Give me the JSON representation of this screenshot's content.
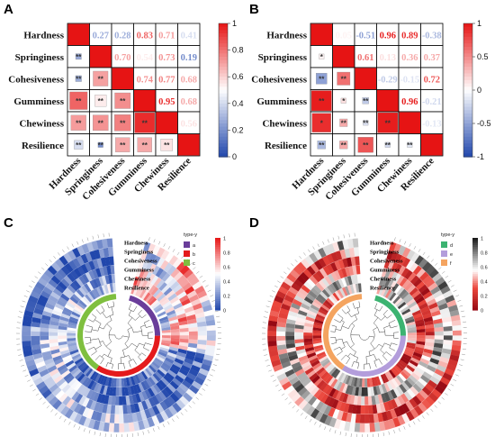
{
  "panels": {
    "a": {
      "letter": "A"
    },
    "b": {
      "letter": "B"
    },
    "c": {
      "letter": "C"
    },
    "d": {
      "letter": "D"
    }
  },
  "chart_data": [
    {
      "type": "heatmap",
      "panel": "A",
      "variables": [
        "Hardness",
        "Springiness",
        "Cohesiveness",
        "Gumminess",
        "Chewiness",
        "Resilience"
      ],
      "upper_values": [
        [
          null,
          0.27,
          0.28,
          0.83,
          0.71,
          0.41
        ],
        [
          null,
          null,
          0.7,
          0.54,
          0.73,
          0.19
        ],
        [
          null,
          null,
          null,
          0.74,
          0.77,
          0.68
        ],
        [
          null,
          null,
          null,
          null,
          0.95,
          0.68
        ],
        [
          null,
          null,
          null,
          null,
          null,
          0.56
        ],
        [
          null,
          null,
          null,
          null,
          null,
          null
        ]
      ],
      "lower_stars": [
        [
          null,
          null,
          null,
          null,
          null,
          null
        ],
        [
          "**",
          null,
          null,
          null,
          null,
          null
        ],
        [
          "**",
          "**",
          null,
          null,
          null,
          null
        ],
        [
          "**",
          "**",
          "**",
          null,
          null,
          null
        ],
        [
          "**",
          "**",
          "**",
          "**",
          null,
          null
        ],
        [
          "**",
          "**",
          "**",
          "**",
          "**",
          null
        ]
      ],
      "colorbar": {
        "min": 0,
        "max": 1,
        "ticks": [
          "0",
          "0.2",
          "0.4",
          "0.6",
          "0.8",
          "1"
        ]
      }
    },
    {
      "type": "heatmap",
      "panel": "B",
      "variables": [
        "Hardness",
        "Springiness",
        "Cohesiveness",
        "Gumminess",
        "Chewiness",
        "Resilience"
      ],
      "upper_values": [
        [
          null,
          0.05,
          -0.51,
          0.96,
          0.89,
          -0.38
        ],
        [
          null,
          null,
          0.61,
          0.13,
          0.36,
          0.37
        ],
        [
          null,
          null,
          null,
          -0.29,
          -0.15,
          0.72
        ],
        [
          null,
          null,
          null,
          null,
          0.96,
          -0.21
        ],
        [
          null,
          null,
          null,
          null,
          null,
          -0.13
        ],
        [
          null,
          null,
          null,
          null,
          null,
          null
        ]
      ],
      "lower_stars": [
        [
          null,
          null,
          null,
          null,
          null,
          null
        ],
        [
          "*",
          null,
          null,
          null,
          null,
          null
        ],
        [
          "**",
          "**",
          null,
          null,
          null,
          null
        ],
        [
          "**",
          "*",
          "**",
          null,
          null,
          null
        ],
        [
          "*",
          "**",
          "**",
          "**",
          null,
          null
        ],
        [
          "**",
          "**",
          "**",
          "**",
          "**",
          null
        ]
      ],
      "colorbar": {
        "min": -1,
        "max": 1,
        "ticks": [
          "-1",
          "-0.5",
          "0",
          "0.5",
          "1"
        ]
      }
    },
    {
      "type": "heatmap",
      "panel": "C",
      "layout": "circular",
      "tracks": [
        "Resilience",
        "Chewiness",
        "Gumminess",
        "Cohesiveness",
        "Springiness",
        "Hardness"
      ],
      "legend_title": "type-y",
      "groups": [
        "a",
        "b",
        "c"
      ],
      "group_colors": [
        "#6a3d9a",
        "#e41a1c",
        "#7fbf3f"
      ],
      "colorbar": {
        "min": 0,
        "max": 1,
        "ticks": [
          "0",
          "0.2",
          "0.4",
          "0.6",
          "0.8",
          "1"
        ]
      }
    },
    {
      "type": "heatmap",
      "panel": "D",
      "layout": "circular",
      "tracks": [
        "Resilience",
        "Chewiness",
        "Gumminess",
        "Cohesiveness",
        "Springiness",
        "Hardness"
      ],
      "legend_title": "type-y",
      "groups": [
        "d",
        "e",
        "f"
      ],
      "group_colors": [
        "#3cb371",
        "#b39ddb",
        "#f4a460"
      ],
      "colorbar": {
        "min": 0,
        "max": 1,
        "ticks": [
          "0",
          "0.2",
          "0.4",
          "0.6",
          "0.8",
          "1"
        ]
      }
    }
  ]
}
